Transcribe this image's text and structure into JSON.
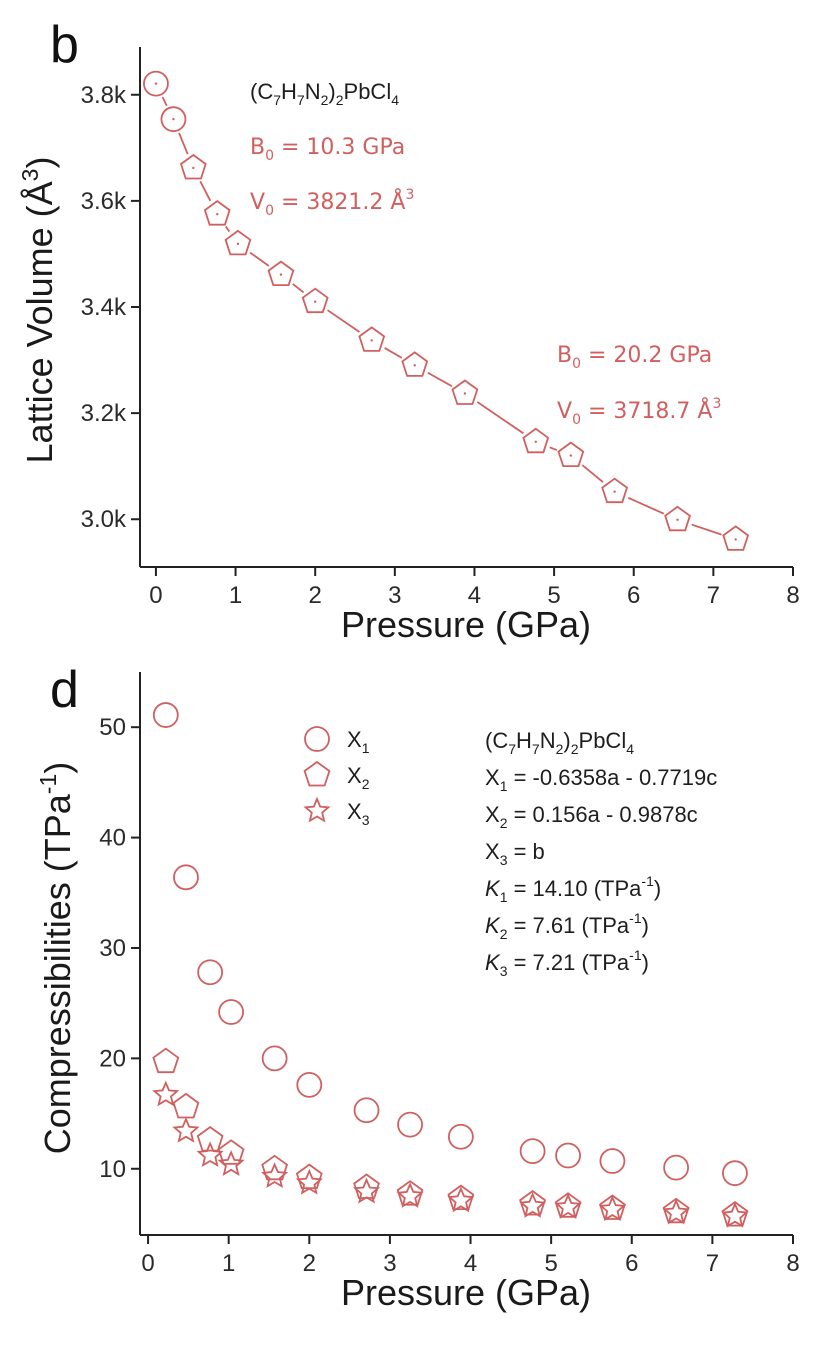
{
  "accent_color": "#d0605f",
  "chart_data": [
    {
      "type": "scatter",
      "panel_label": "b",
      "title": "",
      "xlabel": "Pressure (GPa)",
      "ylabel": "Lattice Volume (Å³)",
      "xlim": [
        -0.2,
        8
      ],
      "ylim": [
        2910,
        3890
      ],
      "x_ticks": [
        0,
        1,
        2,
        3,
        4,
        5,
        6,
        7,
        8
      ],
      "x_tick_labels": [
        "0",
        "1",
        "2",
        "3",
        "4",
        "5",
        "6",
        "7",
        "8"
      ],
      "y_ticks": [
        3000,
        3200,
        3400,
        3600,
        3800
      ],
      "y_tick_labels": [
        "3.0k",
        "3.2k",
        "3.4k",
        "3.6k",
        "3.8k"
      ],
      "grid": false,
      "legend": "none",
      "series": [
        {
          "name": "Lattice volume",
          "color": "#d0605f",
          "fit_line": true,
          "points": [
            {
              "x": 0.0,
              "y": 3821,
              "marker": "circle"
            },
            {
              "x": 0.22,
              "y": 3754,
              "marker": "circle"
            },
            {
              "x": 0.47,
              "y": 3662,
              "marker": "pentagon"
            },
            {
              "x": 0.77,
              "y": 3575,
              "marker": "pentagon"
            },
            {
              "x": 1.03,
              "y": 3519,
              "marker": "pentagon"
            },
            {
              "x": 1.57,
              "y": 3461,
              "marker": "pentagon"
            },
            {
              "x": 2.0,
              "y": 3410,
              "marker": "pentagon"
            },
            {
              "x": 2.71,
              "y": 3337,
              "marker": "pentagon"
            },
            {
              "x": 3.25,
              "y": 3290,
              "marker": "pentagon"
            },
            {
              "x": 3.88,
              "y": 3237,
              "marker": "pentagon"
            },
            {
              "x": 4.77,
              "y": 3146,
              "marker": "pentagon"
            },
            {
              "x": 5.21,
              "y": 3120,
              "marker": "pentagon"
            },
            {
              "x": 5.76,
              "y": 3052,
              "marker": "pentagon"
            },
            {
              "x": 6.55,
              "y": 2999,
              "marker": "pentagon"
            },
            {
              "x": 7.28,
              "y": 2962,
              "marker": "pentagon"
            }
          ]
        }
      ],
      "annotations": {
        "compound": {
          "pre": "(C",
          "s1": "7",
          "m1": "H",
          "s2": "7",
          "m2": "N",
          "s3": "2",
          "m3": ")",
          "s4": "2",
          "m4": "PbCl",
          "s5": "4"
        },
        "fit1_b": {
          "pre": "B",
          "sub": "0",
          "post": " = 10.3 GPa"
        },
        "fit1_v": {
          "pre": "V",
          "sub": "0",
          "mid": " = 3821.2 Å",
          "sup": "3"
        },
        "fit2_b": {
          "pre": "B",
          "sub": "0",
          "post": " = 20.2 GPa"
        },
        "fit2_v": {
          "pre": "V",
          "sub": "0",
          "mid": " = 3718.7 Å",
          "sup": "3"
        }
      }
    },
    {
      "type": "scatter",
      "panel_label": "d",
      "title": "",
      "xlabel": "Pressure (GPa)",
      "ylabel": "Compressibilities (TPa⁻¹)",
      "xlim": [
        -0.1,
        8
      ],
      "ylim": [
        4,
        55
      ],
      "x_ticks": [
        0,
        1,
        2,
        3,
        4,
        5,
        6,
        7,
        8
      ],
      "x_tick_labels": [
        "0",
        "1",
        "2",
        "3",
        "4",
        "5",
        "6",
        "7",
        "8"
      ],
      "y_ticks": [
        10,
        20,
        30,
        40,
        50
      ],
      "y_tick_labels": [
        "10",
        "20",
        "30",
        "40",
        "50"
      ],
      "grid": false,
      "legend": "top-center",
      "series": [
        {
          "name": "X1",
          "marker": "circle",
          "color": "#d0605f",
          "x": [
            0.22,
            0.47,
            0.77,
            1.03,
            1.57,
            2.0,
            2.71,
            3.25,
            3.88,
            4.77,
            5.21,
            5.76,
            6.55,
            7.28
          ],
          "y": [
            51.1,
            36.4,
            27.8,
            24.2,
            20.0,
            17.6,
            15.3,
            14.0,
            12.9,
            11.6,
            11.2,
            10.7,
            10.1,
            9.6
          ]
        },
        {
          "name": "X2",
          "marker": "pentagon",
          "color": "#d0605f",
          "x": [
            0.22,
            0.47,
            0.77,
            1.03,
            1.57,
            2.0,
            2.71,
            3.25,
            3.88,
            4.77,
            5.21,
            5.76,
            6.55,
            7.28
          ],
          "y": [
            19.7,
            15.6,
            12.6,
            11.4,
            10.0,
            9.2,
            8.3,
            7.7,
            7.3,
            6.8,
            6.6,
            6.4,
            6.1,
            5.8
          ]
        },
        {
          "name": "X3",
          "marker": "star",
          "color": "#d0605f",
          "x": [
            0.22,
            0.47,
            0.77,
            1.03,
            1.57,
            2.0,
            2.71,
            3.25,
            3.88,
            4.77,
            5.21,
            5.76,
            6.55,
            7.28
          ],
          "y": [
            16.7,
            13.4,
            11.2,
            10.4,
            9.3,
            8.7,
            7.9,
            7.5,
            7.1,
            6.6,
            6.5,
            6.3,
            6.0,
            5.7
          ]
        }
      ],
      "legend_items": [
        {
          "pre": "X",
          "sub": "1"
        },
        {
          "pre": "X",
          "sub": "2"
        },
        {
          "pre": "X",
          "sub": "3"
        }
      ],
      "annotations": {
        "compound": {
          "pre": "(C",
          "s1": "7",
          "m1": "H",
          "s2": "7",
          "m2": "N",
          "s3": "2",
          "m3": ")",
          "s4": "2",
          "m4": "PbCl",
          "s5": "4"
        },
        "axis1": {
          "pre": "X",
          "sub": "1",
          "post": " = -0.6358a - 0.7719c"
        },
        "axis2": {
          "pre": "X",
          "sub": "2",
          "post": " = 0.156a - 0.9878c"
        },
        "axis3": {
          "pre": "X",
          "sub": "3",
          "post": " = b"
        },
        "k1": {
          "pre": "K",
          "sub": "1",
          "mid": " = 14.10 (TPa",
          "sup": "-1",
          "post": ")"
        },
        "k2": {
          "pre": "K",
          "sub": "2",
          "mid": " = 7.61 (TPa",
          "sup": "-1",
          "post": ")"
        },
        "k3": {
          "pre": "K",
          "sub": "3",
          "mid": " = 7.21 (TPa",
          "sup": "-1",
          "post": ")"
        }
      }
    }
  ],
  "axis_title_parts": {
    "b_y": {
      "pre": "Lattice Volume (Å",
      "sup": "3",
      "post": ")"
    },
    "d_y": {
      "pre": "Compressibilities (TPa",
      "sup": "-1",
      "post": ")"
    }
  }
}
